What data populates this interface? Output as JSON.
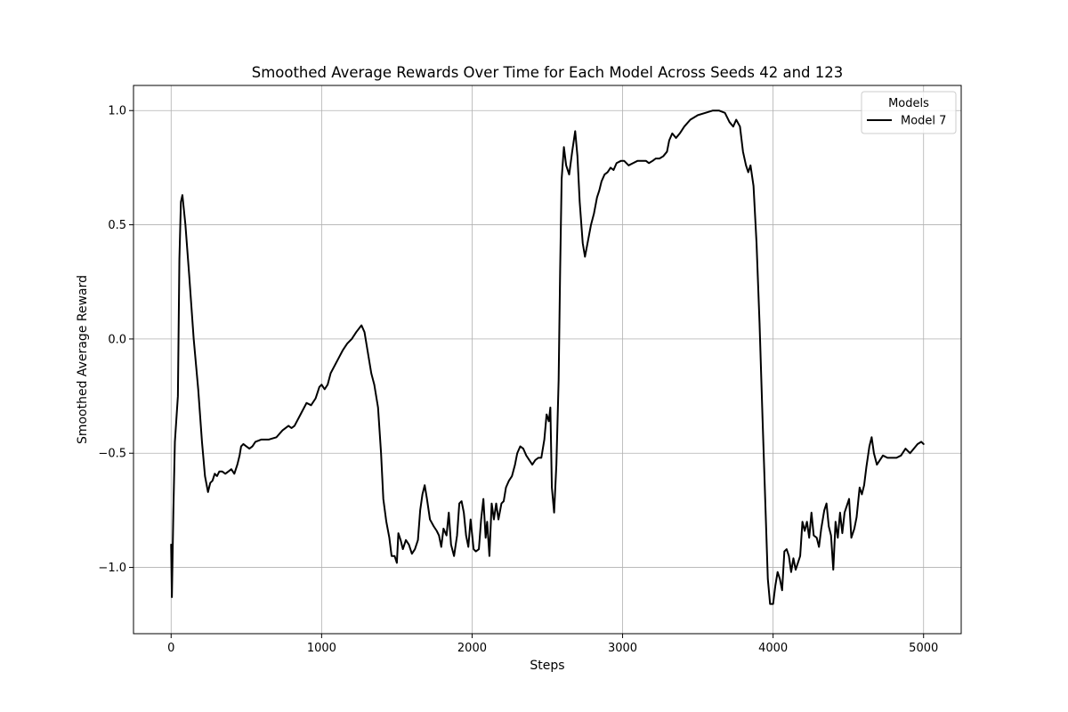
{
  "chart_data": {
    "type": "line",
    "title": "Smoothed Average Rewards Over Time for Each Model Across Seeds 42 and 123",
    "xlabel": "Steps",
    "ylabel": "Smoothed Average Reward",
    "xlim": [
      -250,
      5250
    ],
    "ylim": [
      -1.29,
      1.11
    ],
    "x_ticks": [
      0,
      1000,
      2000,
      3000,
      4000,
      5000
    ],
    "x_tick_labels": [
      "0",
      "1000",
      "2000",
      "3000",
      "4000",
      "5000"
    ],
    "y_ticks": [
      -1.0,
      -0.5,
      0.0,
      0.5,
      1.0
    ],
    "y_tick_labels": [
      "−1.0",
      "−0.5",
      "0.0",
      "0.5",
      "1.0"
    ],
    "grid": true,
    "legend": {
      "title": "Models",
      "placement": "top-right"
    },
    "series": [
      {
        "name": "Model 7",
        "color": "#000000",
        "points": [
          [
            0,
            -0.9
          ],
          [
            5,
            -1.13
          ],
          [
            15,
            -0.75
          ],
          [
            25,
            -0.45
          ],
          [
            45,
            -0.25
          ],
          [
            55,
            0.35
          ],
          [
            65,
            0.6
          ],
          [
            75,
            0.63
          ],
          [
            95,
            0.5
          ],
          [
            120,
            0.28
          ],
          [
            150,
            0.0
          ],
          [
            180,
            -0.22
          ],
          [
            205,
            -0.45
          ],
          [
            225,
            -0.6
          ],
          [
            245,
            -0.67
          ],
          [
            260,
            -0.63
          ],
          [
            275,
            -0.62
          ],
          [
            290,
            -0.59
          ],
          [
            305,
            -0.6
          ],
          [
            320,
            -0.58
          ],
          [
            340,
            -0.58
          ],
          [
            360,
            -0.59
          ],
          [
            380,
            -0.58
          ],
          [
            400,
            -0.57
          ],
          [
            420,
            -0.59
          ],
          [
            440,
            -0.55
          ],
          [
            455,
            -0.51
          ],
          [
            465,
            -0.47
          ],
          [
            480,
            -0.46
          ],
          [
            500,
            -0.47
          ],
          [
            520,
            -0.48
          ],
          [
            540,
            -0.47
          ],
          [
            560,
            -0.45
          ],
          [
            600,
            -0.44
          ],
          [
            650,
            -0.44
          ],
          [
            700,
            -0.43
          ],
          [
            740,
            -0.4
          ],
          [
            780,
            -0.38
          ],
          [
            800,
            -0.39
          ],
          [
            820,
            -0.38
          ],
          [
            860,
            -0.33
          ],
          [
            900,
            -0.28
          ],
          [
            930,
            -0.29
          ],
          [
            960,
            -0.26
          ],
          [
            985,
            -0.21
          ],
          [
            1000,
            -0.2
          ],
          [
            1020,
            -0.22
          ],
          [
            1040,
            -0.2
          ],
          [
            1060,
            -0.15
          ],
          [
            1100,
            -0.1
          ],
          [
            1140,
            -0.05
          ],
          [
            1170,
            -0.02
          ],
          [
            1200,
            0.0
          ],
          [
            1230,
            0.03
          ],
          [
            1265,
            0.06
          ],
          [
            1285,
            0.03
          ],
          [
            1305,
            -0.05
          ],
          [
            1330,
            -0.15
          ],
          [
            1350,
            -0.2
          ],
          [
            1375,
            -0.3
          ],
          [
            1395,
            -0.5
          ],
          [
            1410,
            -0.7
          ],
          [
            1430,
            -0.8
          ],
          [
            1450,
            -0.87
          ],
          [
            1465,
            -0.95
          ],
          [
            1485,
            -0.95
          ],
          [
            1500,
            -0.98
          ],
          [
            1510,
            -0.85
          ],
          [
            1525,
            -0.88
          ],
          [
            1540,
            -0.92
          ],
          [
            1560,
            -0.88
          ],
          [
            1580,
            -0.9
          ],
          [
            1600,
            -0.94
          ],
          [
            1620,
            -0.92
          ],
          [
            1640,
            -0.88
          ],
          [
            1655,
            -0.75
          ],
          [
            1670,
            -0.68
          ],
          [
            1685,
            -0.64
          ],
          [
            1700,
            -0.7
          ],
          [
            1720,
            -0.79
          ],
          [
            1745,
            -0.82
          ],
          [
            1765,
            -0.84
          ],
          [
            1780,
            -0.86
          ],
          [
            1795,
            -0.91
          ],
          [
            1810,
            -0.83
          ],
          [
            1830,
            -0.86
          ],
          [
            1845,
            -0.76
          ],
          [
            1860,
            -0.9
          ],
          [
            1880,
            -0.95
          ],
          [
            1900,
            -0.86
          ],
          [
            1915,
            -0.72
          ],
          [
            1930,
            -0.71
          ],
          [
            1945,
            -0.76
          ],
          [
            1960,
            -0.86
          ],
          [
            1975,
            -0.91
          ],
          [
            1990,
            -0.79
          ],
          [
            2010,
            -0.92
          ],
          [
            2025,
            -0.93
          ],
          [
            2045,
            -0.92
          ],
          [
            2060,
            -0.79
          ],
          [
            2075,
            -0.7
          ],
          [
            2090,
            -0.87
          ],
          [
            2100,
            -0.8
          ],
          [
            2115,
            -0.95
          ],
          [
            2130,
            -0.72
          ],
          [
            2145,
            -0.79
          ],
          [
            2160,
            -0.72
          ],
          [
            2175,
            -0.79
          ],
          [
            2195,
            -0.72
          ],
          [
            2210,
            -0.71
          ],
          [
            2225,
            -0.65
          ],
          [
            2245,
            -0.62
          ],
          [
            2265,
            -0.6
          ],
          [
            2285,
            -0.55
          ],
          [
            2300,
            -0.5
          ],
          [
            2320,
            -0.47
          ],
          [
            2340,
            -0.48
          ],
          [
            2360,
            -0.51
          ],
          [
            2380,
            -0.53
          ],
          [
            2400,
            -0.55
          ],
          [
            2420,
            -0.53
          ],
          [
            2440,
            -0.52
          ],
          [
            2460,
            -0.52
          ],
          [
            2480,
            -0.44
          ],
          [
            2495,
            -0.33
          ],
          [
            2510,
            -0.36
          ],
          [
            2520,
            -0.3
          ],
          [
            2530,
            -0.65
          ],
          [
            2545,
            -0.76
          ],
          [
            2560,
            -0.55
          ],
          [
            2575,
            -0.18
          ],
          [
            2585,
            0.3
          ],
          [
            2595,
            0.7
          ],
          [
            2610,
            0.84
          ],
          [
            2625,
            0.76
          ],
          [
            2645,
            0.72
          ],
          [
            2665,
            0.82
          ],
          [
            2685,
            0.91
          ],
          [
            2700,
            0.8
          ],
          [
            2715,
            0.6
          ],
          [
            2735,
            0.42
          ],
          [
            2750,
            0.36
          ],
          [
            2770,
            0.43
          ],
          [
            2790,
            0.5
          ],
          [
            2810,
            0.55
          ],
          [
            2830,
            0.62
          ],
          [
            2845,
            0.65
          ],
          [
            2860,
            0.69
          ],
          [
            2880,
            0.72
          ],
          [
            2900,
            0.73
          ],
          [
            2920,
            0.75
          ],
          [
            2940,
            0.74
          ],
          [
            2960,
            0.77
          ],
          [
            2990,
            0.78
          ],
          [
            3010,
            0.78
          ],
          [
            3040,
            0.76
          ],
          [
            3070,
            0.77
          ],
          [
            3100,
            0.78
          ],
          [
            3130,
            0.78
          ],
          [
            3155,
            0.78
          ],
          [
            3175,
            0.77
          ],
          [
            3200,
            0.78
          ],
          [
            3220,
            0.79
          ],
          [
            3245,
            0.79
          ],
          [
            3270,
            0.8
          ],
          [
            3295,
            0.82
          ],
          [
            3310,
            0.87
          ],
          [
            3330,
            0.9
          ],
          [
            3355,
            0.88
          ],
          [
            3380,
            0.9
          ],
          [
            3410,
            0.93
          ],
          [
            3450,
            0.96
          ],
          [
            3500,
            0.98
          ],
          [
            3550,
            0.99
          ],
          [
            3600,
            1.0
          ],
          [
            3640,
            1.0
          ],
          [
            3680,
            0.99
          ],
          [
            3710,
            0.95
          ],
          [
            3735,
            0.93
          ],
          [
            3755,
            0.96
          ],
          [
            3780,
            0.93
          ],
          [
            3800,
            0.82
          ],
          [
            3820,
            0.76
          ],
          [
            3835,
            0.73
          ],
          [
            3850,
            0.76
          ],
          [
            3870,
            0.67
          ],
          [
            3890,
            0.42
          ],
          [
            3910,
            0.07
          ],
          [
            3930,
            -0.35
          ],
          [
            3950,
            -0.75
          ],
          [
            3965,
            -1.05
          ],
          [
            3980,
            -1.16
          ],
          [
            4000,
            -1.16
          ],
          [
            4015,
            -1.08
          ],
          [
            4030,
            -1.02
          ],
          [
            4045,
            -1.05
          ],
          [
            4060,
            -1.1
          ],
          [
            4075,
            -0.93
          ],
          [
            4090,
            -0.92
          ],
          [
            4105,
            -0.95
          ],
          [
            4120,
            -1.02
          ],
          [
            4135,
            -0.96
          ],
          [
            4150,
            -1.01
          ],
          [
            4165,
            -0.98
          ],
          [
            4180,
            -0.95
          ],
          [
            4195,
            -0.8
          ],
          [
            4210,
            -0.84
          ],
          [
            4225,
            -0.8
          ],
          [
            4240,
            -0.87
          ],
          [
            4255,
            -0.76
          ],
          [
            4270,
            -0.86
          ],
          [
            4290,
            -0.87
          ],
          [
            4305,
            -0.91
          ],
          [
            4320,
            -0.83
          ],
          [
            4340,
            -0.75
          ],
          [
            4355,
            -0.72
          ],
          [
            4370,
            -0.82
          ],
          [
            4385,
            -0.86
          ],
          [
            4400,
            -1.01
          ],
          [
            4415,
            -0.8
          ],
          [
            4430,
            -0.87
          ],
          [
            4445,
            -0.76
          ],
          [
            4460,
            -0.85
          ],
          [
            4475,
            -0.76
          ],
          [
            4490,
            -0.73
          ],
          [
            4505,
            -0.7
          ],
          [
            4520,
            -0.87
          ],
          [
            4540,
            -0.83
          ],
          [
            4555,
            -0.78
          ],
          [
            4575,
            -0.65
          ],
          [
            4590,
            -0.68
          ],
          [
            4605,
            -0.64
          ],
          [
            4620,
            -0.56
          ],
          [
            4640,
            -0.47
          ],
          [
            4655,
            -0.43
          ],
          [
            4670,
            -0.5
          ],
          [
            4690,
            -0.55
          ],
          [
            4710,
            -0.53
          ],
          [
            4730,
            -0.51
          ],
          [
            4760,
            -0.52
          ],
          [
            4790,
            -0.52
          ],
          [
            4820,
            -0.52
          ],
          [
            4850,
            -0.51
          ],
          [
            4880,
            -0.48
          ],
          [
            4910,
            -0.5
          ],
          [
            4935,
            -0.48
          ],
          [
            4960,
            -0.46
          ],
          [
            4985,
            -0.45
          ],
          [
            5000,
            -0.46
          ]
        ]
      }
    ]
  }
}
